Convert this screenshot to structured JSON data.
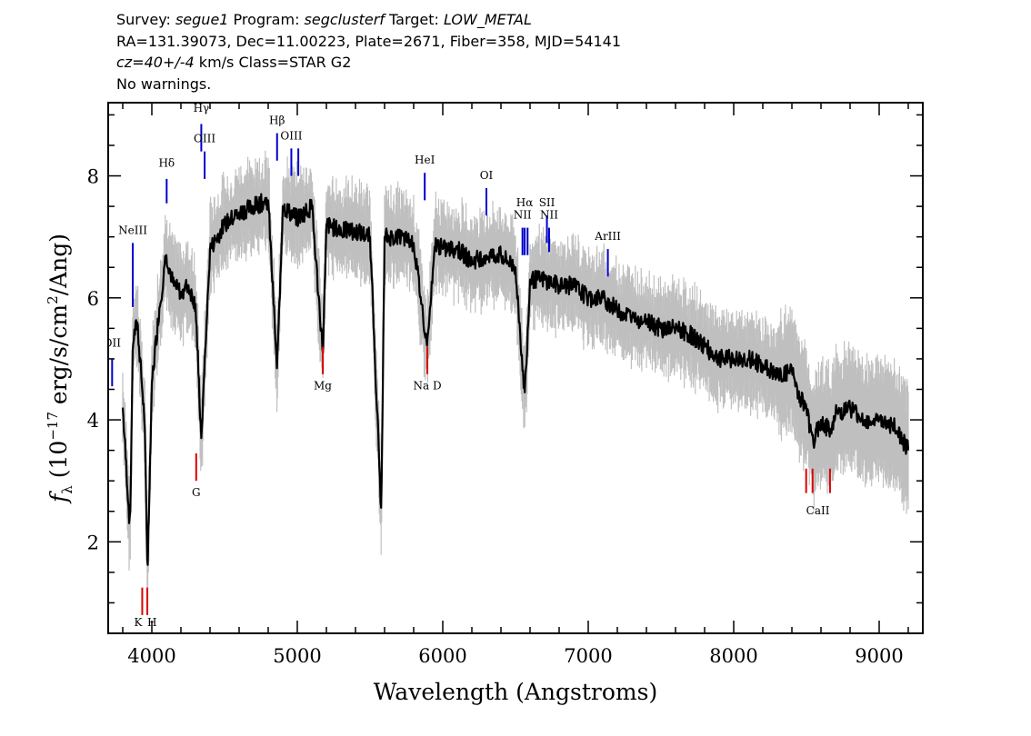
{
  "header": {
    "line1": {
      "survey_label": "Survey: ",
      "survey": "segue1",
      "program_label": " Program: ",
      "program": "segclusterf",
      "target_label": " Target: ",
      "target": "LOW_METAL"
    },
    "line2": "RA=131.39073, Dec=11.00223, Plate=2671, Fiber=358, MJD=54141",
    "line3": {
      "cz": "cz=40+/-4",
      "rest": " km/s Class=STAR G2"
    },
    "line4": "No warnings."
  },
  "colors": {
    "flux": "#000000",
    "error": "#bfbfbf",
    "emission": "#0000cc",
    "absorption": "#dd0000"
  },
  "chart_data": {
    "type": "line",
    "xlabel": "Wavelength (Angstroms)",
    "ylabel_parts": {
      "f": "f",
      "lambda": "λ",
      "open": " (10",
      "exp": "−17",
      "mid": " erg/s/cm",
      "exp2": "2",
      "close": "/Ang)"
    },
    "xlim": [
      3700,
      9300
    ],
    "ylim": [
      0.5,
      9.2
    ],
    "xticks": [
      4000,
      5000,
      6000,
      7000,
      8000,
      9000
    ],
    "yticks": [
      2,
      4,
      6,
      8
    ],
    "grid": false,
    "series": [
      {
        "x": [
          3800,
          3850,
          3870,
          3900,
          3950,
          3970,
          4000,
          4050,
          4100,
          4150,
          4200,
          4250,
          4300,
          4340,
          4400,
          4500,
          4600,
          4700,
          4800,
          4861,
          4900,
          5000,
          5100,
          5176,
          5200,
          5300,
          5400,
          5500,
          5577,
          5600,
          5700,
          5800,
          5893,
          5950,
          6000,
          6100,
          6200,
          6300,
          6400,
          6500,
          6563,
          6600,
          6700,
          6800,
          6900,
          7000,
          7100,
          7200,
          7300,
          7400,
          7500,
          7600,
          7700,
          7800,
          7900,
          8000,
          8100,
          8200,
          8300,
          8400,
          8450,
          8500,
          8542,
          8600,
          8662,
          8700,
          8800,
          8900,
          9000,
          9100,
          9200
        ],
        "y": [
          4.2,
          2.2,
          5.3,
          5.6,
          4.0,
          1.5,
          4.6,
          5.8,
          6.7,
          6.2,
          6.1,
          6.2,
          5.9,
          3.7,
          6.8,
          7.2,
          7.4,
          7.5,
          7.6,
          4.8,
          7.5,
          7.3,
          7.5,
          5.1,
          7.2,
          7.1,
          7.1,
          7.0,
          2.5,
          7.0,
          7.0,
          6.9,
          5.2,
          6.9,
          6.8,
          6.8,
          6.6,
          6.7,
          6.7,
          6.5,
          4.4,
          6.3,
          6.3,
          6.2,
          6.2,
          6.0,
          6.0,
          5.8,
          5.7,
          5.6,
          5.5,
          5.5,
          5.4,
          5.2,
          5.0,
          5.0,
          5.0,
          4.9,
          4.7,
          4.8,
          4.4,
          4.2,
          3.6,
          4.0,
          3.8,
          4.1,
          4.2,
          4.0,
          4.0,
          3.9,
          3.5
        ]
      }
    ],
    "emission_lines": [
      {
        "label": "OII",
        "x": 3727,
        "y0": 4.55,
        "y1": 5.0,
        "label_y": 5.2
      },
      {
        "label": "NeIII",
        "x": 3869,
        "y0": 5.85,
        "y1": 6.9,
        "label_y": 7.05
      },
      {
        "label": "Hδ",
        "x": 4102,
        "y0": 7.55,
        "y1": 7.95,
        "label_y": 8.15
      },
      {
        "label": "Hγ",
        "x": 4340,
        "y0": 8.4,
        "y1": 8.85,
        "label_y": 9.05
      },
      {
        "label": "OIII",
        "x": 4363,
        "y0": 7.95,
        "y1": 8.4,
        "label_y": 8.55
      },
      {
        "label": "Hβ",
        "x": 4861,
        "y0": 8.25,
        "y1": 8.7,
        "label_y": 8.85
      },
      {
        "label": "OIII",
        "x": 4959,
        "y0": 8.0,
        "y1": 8.45,
        "label_y": 8.6
      },
      {
        "label": "",
        "x": 5007,
        "y0": 8.0,
        "y1": 8.45,
        "label_y": 8.6
      },
      {
        "label": "HeI",
        "x": 5876,
        "y0": 7.6,
        "y1": 8.05,
        "label_y": 8.2
      },
      {
        "label": "OI",
        "x": 6300,
        "y0": 7.35,
        "y1": 7.8,
        "label_y": 7.95
      },
      {
        "label": "NII",
        "x": 6548,
        "y0": 6.7,
        "y1": 7.15,
        "label_y": 7.3
      },
      {
        "label": "Hα",
        "x": 6563,
        "y0": 6.7,
        "y1": 7.15,
        "label_y": 7.5
      },
      {
        "label": "",
        "x": 6583,
        "y0": 6.7,
        "y1": 7.15,
        "label_y": 7.3
      },
      {
        "label": "SII",
        "x": 6716,
        "y0": 6.9,
        "y1": 7.35,
        "label_y": 7.5
      },
      {
        "label": "NII",
        "x": 6731,
        "y0": 6.75,
        "y1": 7.15,
        "label_y": 7.3
      },
      {
        "label": "ArIII",
        "x": 7135,
        "y0": 6.35,
        "y1": 6.8,
        "label_y": 6.95
      }
    ],
    "absorption_lines": [
      {
        "label": "K",
        "x": 3934,
        "y0": 0.8,
        "y1": 1.25,
        "label_y": 0.62,
        "anchor": "end"
      },
      {
        "label": "H",
        "x": 3969,
        "y0": 0.8,
        "y1": 1.25,
        "label_y": 0.62,
        "anchor": "start"
      },
      {
        "label": "G",
        "x": 4305,
        "y0": 3.0,
        "y1": 3.45,
        "label_y": 2.75,
        "anchor": "middle"
      },
      {
        "label": "Mg",
        "x": 5175,
        "y0": 4.75,
        "y1": 5.2,
        "label_y": 4.5,
        "anchor": "middle"
      },
      {
        "label": "Na D",
        "x": 5894,
        "y0": 4.75,
        "y1": 5.2,
        "label_y": 4.5,
        "anchor": "middle"
      },
      {
        "label": "CaII",
        "x": 8498,
        "y0": 2.8,
        "y1": 3.2,
        "label_y": 2.45,
        "anchor": "start"
      },
      {
        "label": "",
        "x": 8542,
        "y0": 2.8,
        "y1": 3.2,
        "label_y": 2.45,
        "anchor": "middle"
      },
      {
        "label": "",
        "x": 8662,
        "y0": 2.8,
        "y1": 3.2,
        "label_y": 2.45,
        "anchor": "middle"
      }
    ]
  }
}
